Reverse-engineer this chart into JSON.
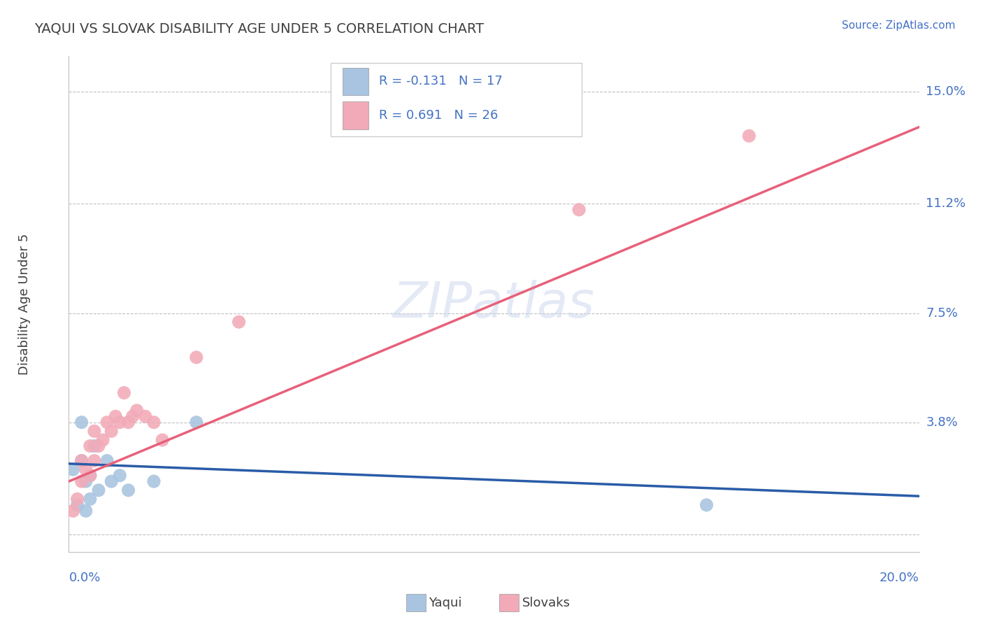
{
  "title": "YAQUI VS SLOVAK DISABILITY AGE UNDER 5 CORRELATION CHART",
  "source": "Source: ZipAtlas.com",
  "ylabel": "Disability Age Under 5",
  "xmin": 0.0,
  "xmax": 0.2,
  "ymin": -0.006,
  "ymax": 0.162,
  "ytick_values": [
    0.0,
    0.038,
    0.075,
    0.112,
    0.15
  ],
  "ytick_labels": [
    "",
    "3.8%",
    "7.5%",
    "11.2%",
    "15.0%"
  ],
  "yaqui_R": -0.131,
  "yaqui_N": 17,
  "slovak_R": 0.691,
  "slovak_N": 26,
  "yaqui_color": "#a8c4e0",
  "slovak_color": "#f2aab8",
  "yaqui_line_color": "#2a5ca8",
  "slovak_line_color": "#e8607a",
  "watermark": "ZIPatlas",
  "watermark_color": "#ccd8ee",
  "grid_color": "#c0c0c0",
  "title_color": "#404040",
  "axis_label_color": "#4472c4",
  "yaqui_x": [
    0.001,
    0.002,
    0.003,
    0.004,
    0.004,
    0.005,
    0.005,
    0.006,
    0.007,
    0.009,
    0.01,
    0.012,
    0.014,
    0.02,
    0.03,
    0.15,
    0.003
  ],
  "yaqui_y": [
    0.022,
    0.01,
    0.025,
    0.018,
    0.008,
    0.02,
    0.012,
    0.03,
    0.015,
    0.025,
    0.018,
    0.02,
    0.015,
    0.018,
    0.038,
    0.01,
    0.038
  ],
  "slovak_x": [
    0.001,
    0.002,
    0.003,
    0.003,
    0.004,
    0.005,
    0.005,
    0.006,
    0.006,
    0.007,
    0.008,
    0.009,
    0.01,
    0.011,
    0.012,
    0.013,
    0.014,
    0.015,
    0.016,
    0.018,
    0.02,
    0.022,
    0.03,
    0.04,
    0.12,
    0.16
  ],
  "slovak_y": [
    0.008,
    0.012,
    0.018,
    0.025,
    0.022,
    0.02,
    0.03,
    0.025,
    0.035,
    0.03,
    0.032,
    0.038,
    0.035,
    0.04,
    0.038,
    0.048,
    0.038,
    0.04,
    0.042,
    0.04,
    0.038,
    0.032,
    0.06,
    0.072,
    0.11,
    0.135
  ],
  "yaqui_line_x0": 0.0,
  "yaqui_line_y0": 0.024,
  "yaqui_line_x1": 0.2,
  "yaqui_line_y1": 0.013,
  "slovak_line_x0": 0.0,
  "slovak_line_y0": 0.018,
  "slovak_line_x1": 0.2,
  "slovak_line_y1": 0.138
}
